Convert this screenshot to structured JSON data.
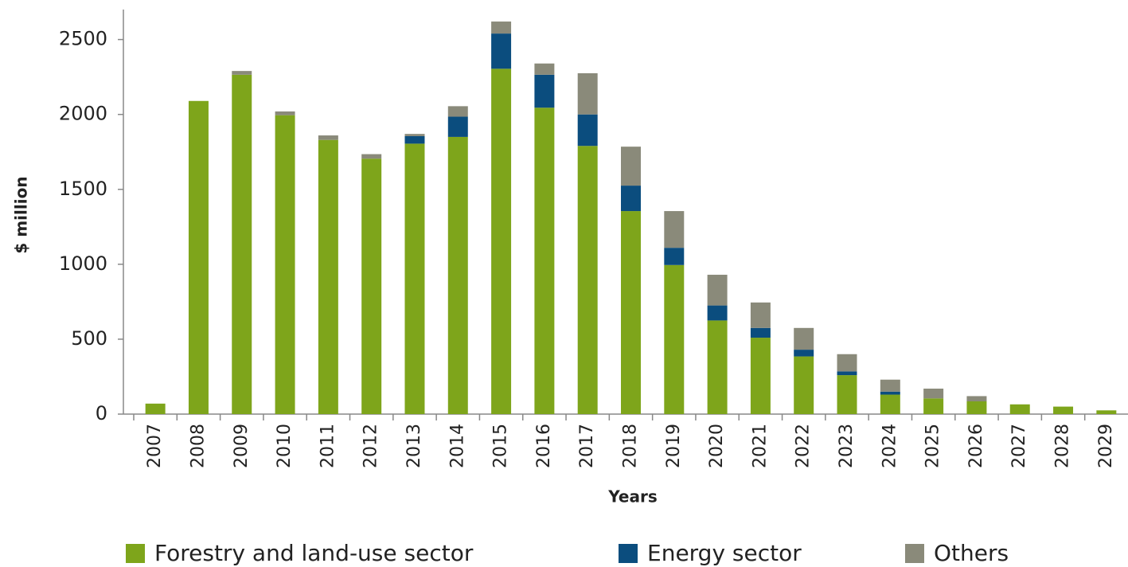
{
  "chart_data": {
    "type": "stacked_bar",
    "x_label": "Years",
    "y_label": "$ million",
    "categories": [
      "2007",
      "2008",
      "2009",
      "2010",
      "2011",
      "2012",
      "2013",
      "2014",
      "2015",
      "2016",
      "2017",
      "2018",
      "2019",
      "2020",
      "2021",
      "2022",
      "2023",
      "2024",
      "2025",
      "2026",
      "2027",
      "2028",
      "2029"
    ],
    "series": [
      {
        "name": "Forestry and land-use sector",
        "color": "#7ea51b",
        "values": [
          70,
          2090,
          2265,
          1995,
          1830,
          1705,
          1805,
          1850,
          2305,
          2045,
          1790,
          1355,
          995,
          625,
          510,
          385,
          260,
          130,
          105,
          85,
          65,
          50,
          25
        ]
      },
      {
        "name": "Energy sector",
        "color": "#0b4d7e",
        "values": [
          0,
          0,
          0,
          0,
          0,
          0,
          50,
          135,
          235,
          220,
          210,
          170,
          115,
          100,
          65,
          45,
          25,
          20,
          0,
          0,
          0,
          0,
          0
        ]
      },
      {
        "name": "Others",
        "color": "#8a8a7a",
        "values": [
          0,
          0,
          25,
          25,
          30,
          30,
          15,
          70,
          80,
          75,
          275,
          260,
          245,
          205,
          170,
          145,
          115,
          80,
          65,
          35,
          0,
          0,
          0
        ]
      }
    ],
    "ylim": [
      0,
      2700
    ],
    "yticks": [
      0,
      500,
      1000,
      1500,
      2000,
      2500
    ],
    "legend": "bottom"
  }
}
